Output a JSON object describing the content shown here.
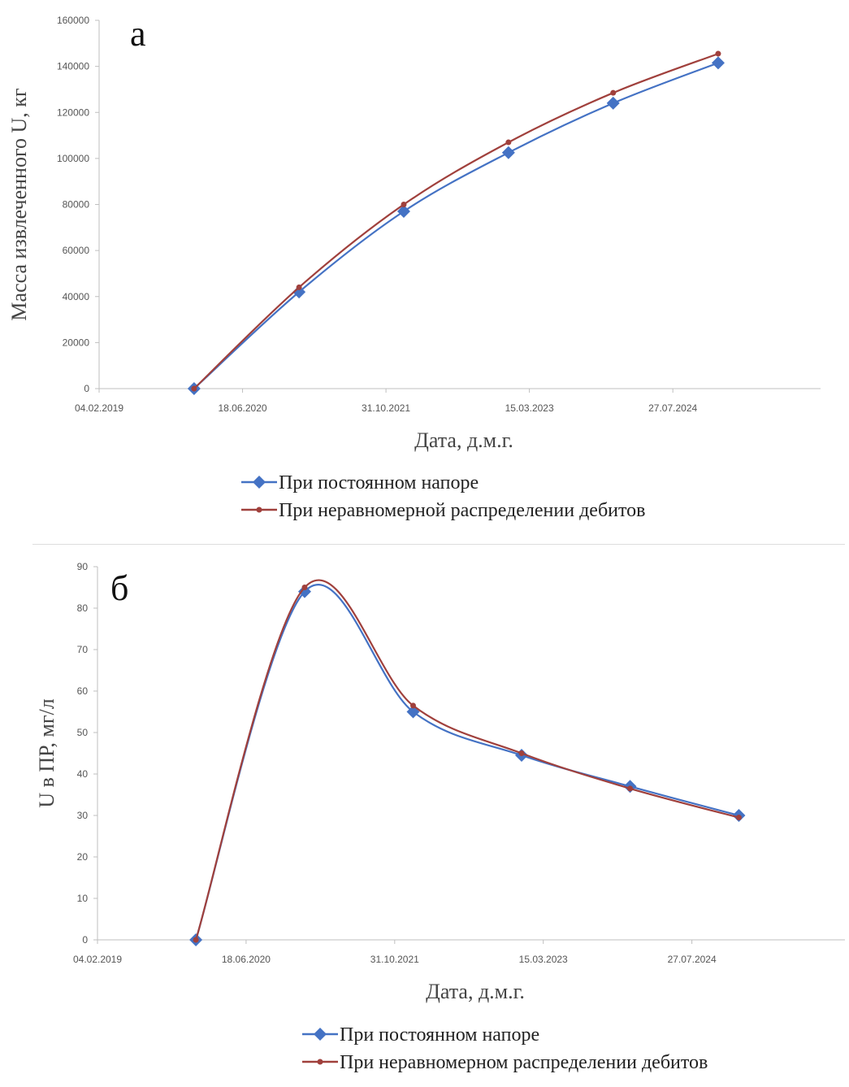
{
  "chart_data": [
    {
      "type": "line",
      "panel_label": "а",
      "xlabel": "Дата, д.м.г.",
      "ylabel": "Масса извлеченного U, кг",
      "ylim": [
        0,
        160000
      ],
      "xlim": [
        "04.02.2019",
        "24.12.2025"
      ],
      "x_tick_labels": [
        "04.02.2019",
        "18.06.2020",
        "31.10.2021",
        "15.03.2023",
        "27.07.2024"
      ],
      "y_tick_labels": [
        "0",
        "20000",
        "40000",
        "60000",
        "80000",
        "100000",
        "120000",
        "140000",
        "160000"
      ],
      "grid": false,
      "legend_position": "bottom",
      "series": [
        {
          "name": "При постоянном напоре",
          "color": "#4472c4",
          "marker": "diamond",
          "x": [
            "01.01.2020",
            "01.01.2021",
            "01.01.2022",
            "01.01.2023",
            "01.01.2024",
            "01.01.2025"
          ],
          "values": [
            0,
            42000,
            77000,
            102500,
            124000,
            141500
          ]
        },
        {
          "name": "При неравномерной распределении дебитов",
          "color": "#a0403c",
          "marker": "dot",
          "x": [
            "01.01.2020",
            "01.01.2021",
            "01.01.2022",
            "01.01.2023",
            "01.01.2024",
            "01.01.2025"
          ],
          "values": [
            0,
            44000,
            80000,
            107000,
            128500,
            145500
          ]
        }
      ]
    },
    {
      "type": "line",
      "panel_label": "б",
      "xlabel": "Дата, д.м.г.",
      "ylabel": "U в ПР, мг/л",
      "ylim": [
        0,
        90
      ],
      "xlim": [
        "04.02.2019",
        "24.12.2025"
      ],
      "x_tick_labels": [
        "04.02.2019",
        "18.06.2020",
        "31.10.2021",
        "15.03.2023",
        "27.07.2024"
      ],
      "y_tick_labels": [
        "0",
        "10",
        "20",
        "30",
        "40",
        "50",
        "60",
        "70",
        "80",
        "90"
      ],
      "grid": false,
      "legend_position": "bottom",
      "series": [
        {
          "name": "При постоянном напоре",
          "color": "#4472c4",
          "marker": "diamond",
          "x": [
            "01.01.2020",
            "01.01.2021",
            "01.01.2022",
            "01.01.2023",
            "01.01.2024",
            "01.01.2025"
          ],
          "values": [
            0,
            84,
            55,
            44.5,
            37,
            30
          ]
        },
        {
          "name": "При неравномерном распределении дебитов",
          "color": "#a0403c",
          "marker": "dot",
          "x": [
            "01.01.2020",
            "01.01.2021",
            "01.01.2022",
            "01.01.2023",
            "01.01.2024",
            "01.01.2025"
          ],
          "values": [
            0,
            85,
            56.5,
            45,
            36.5,
            29.5
          ]
        }
      ]
    }
  ]
}
